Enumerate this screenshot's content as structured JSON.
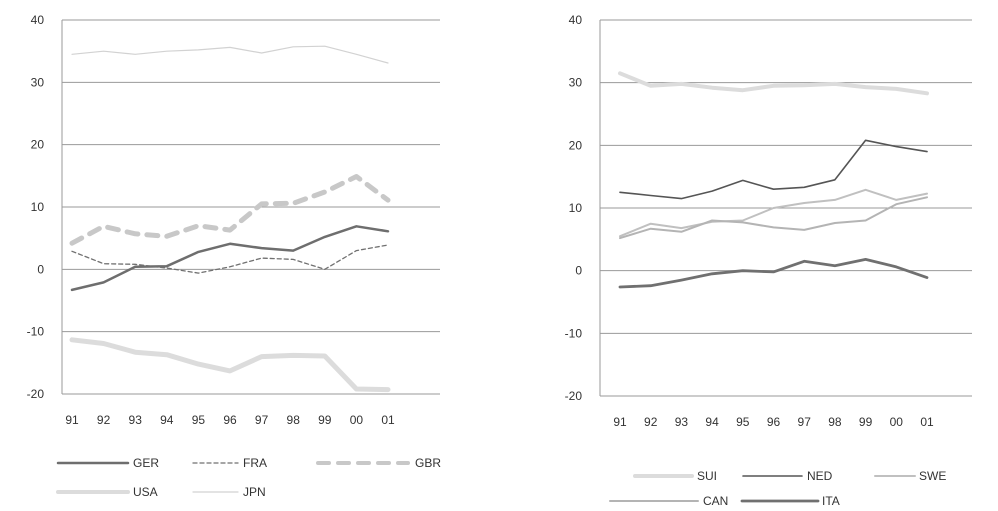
{
  "chart_data": [
    {
      "type": "line",
      "categories": [
        "91",
        "92",
        "93",
        "94",
        "95",
        "96",
        "97",
        "98",
        "99",
        "00",
        "01"
      ],
      "ylim": [
        -20,
        40
      ],
      "yticks": [
        "40",
        "30",
        "20",
        "10",
        "0",
        "-10",
        "-20"
      ],
      "grid": true,
      "legend_position": "bottom",
      "series": [
        {
          "name": "GER",
          "color": "#6e6e6e",
          "style": "solid",
          "width": 2.5,
          "values": [
            -3.3,
            -2.1,
            0.4,
            0.5,
            2.8,
            4.1,
            3.4,
            3.0,
            5.2,
            6.9,
            6.1
          ]
        },
        {
          "name": "FRA",
          "color": "#707070",
          "style": "dotted",
          "width": 1.3,
          "values": [
            2.9,
            0.9,
            0.8,
            0.2,
            -0.6,
            0.4,
            1.8,
            1.6,
            0.0,
            3.0,
            3.9
          ]
        },
        {
          "name": "GBR",
          "color": "#c8c8c8",
          "style": "dashed",
          "width": 5,
          "values": [
            4.2,
            6.9,
            5.7,
            5.3,
            7.0,
            6.3,
            10.5,
            10.6,
            12.4,
            14.9,
            11.1
          ]
        },
        {
          "name": "USA",
          "color": "#dcdcdc",
          "style": "solid",
          "width": 5,
          "values": [
            -11.3,
            -11.9,
            -13.3,
            -13.7,
            -15.2,
            -16.3,
            -14.0,
            -13.8,
            -13.9,
            -19.2,
            -19.3
          ]
        },
        {
          "name": "JPN",
          "color": "#d2d2d2",
          "style": "solid",
          "width": 1.2,
          "values": [
            34.5,
            35.0,
            34.5,
            35.0,
            35.2,
            35.6,
            34.7,
            35.7,
            35.8,
            34.5,
            33.1
          ]
        }
      ]
    },
    {
      "type": "line",
      "categories": [
        "91",
        "92",
        "93",
        "94",
        "95",
        "96",
        "97",
        "98",
        "99",
        "00",
        "01"
      ],
      "ylim": [
        -20,
        40
      ],
      "yticks": [
        "40",
        "30",
        "20",
        "10",
        "0",
        "-10",
        "-20"
      ],
      "grid": true,
      "legend_position": "bottom",
      "series": [
        {
          "name": "SUI",
          "color": "#dcdcdc",
          "style": "solid",
          "width": 4,
          "values": [
            31.5,
            29.5,
            29.8,
            29.2,
            28.8,
            29.5,
            29.6,
            29.8,
            29.3,
            29.0,
            28.3
          ]
        },
        {
          "name": "NED",
          "color": "#555555",
          "style": "solid",
          "width": 1.6,
          "values": [
            12.5,
            12.0,
            11.5,
            12.7,
            14.4,
            13.0,
            13.3,
            14.5,
            20.8,
            19.8,
            19.0
          ]
        },
        {
          "name": "SWE",
          "color": "#c0c0c0",
          "style": "solid",
          "width": 2,
          "values": [
            5.5,
            7.5,
            6.8,
            7.8,
            8.0,
            10.0,
            10.8,
            11.3,
            12.9,
            11.3,
            12.3
          ]
        },
        {
          "name": "CAN",
          "color": "#b4b4b4",
          "style": "solid",
          "width": 2,
          "values": [
            5.2,
            6.7,
            6.2,
            8.0,
            7.7,
            6.9,
            6.5,
            7.6,
            8.0,
            10.6,
            11.7
          ]
        },
        {
          "name": "ITA",
          "color": "#707070",
          "style": "solid",
          "width": 2.8,
          "values": [
            -2.6,
            -2.4,
            -1.5,
            -0.5,
            0.0,
            -0.2,
            1.5,
            0.8,
            1.8,
            0.6,
            -1.1
          ]
        }
      ]
    }
  ]
}
